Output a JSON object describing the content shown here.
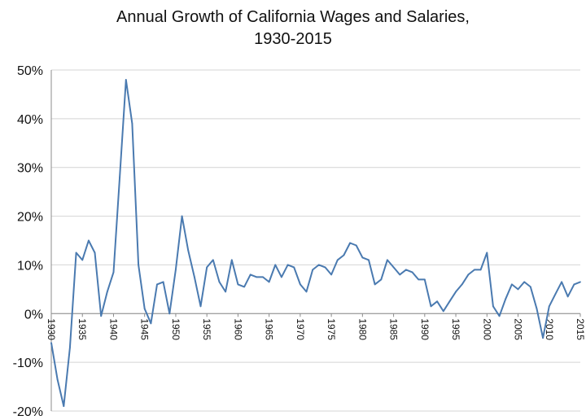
{
  "chart_data": {
    "type": "line",
    "title": [
      "Annual Growth of California Wages and Salaries,",
      "1930-2015"
    ],
    "xlabel": "",
    "ylabel": "",
    "xlim": [
      1930,
      2015
    ],
    "ylim": [
      -20,
      50
    ],
    "ytick_values": [
      -20,
      -10,
      0,
      10,
      20,
      30,
      40,
      50
    ],
    "yticks": [
      "-20%",
      "-10%",
      "0%",
      "10%",
      "20%",
      "30%",
      "40%",
      "50%"
    ],
    "xtick_values": [
      1930,
      1935,
      1940,
      1945,
      1950,
      1955,
      1960,
      1965,
      1970,
      1975,
      1980,
      1985,
      1990,
      1995,
      2000,
      2005,
      2010,
      2015
    ],
    "xticks": [
      "1930",
      "1935",
      "1940",
      "1945",
      "1950",
      "1955",
      "1960",
      "1965",
      "1970",
      "1975",
      "1980",
      "1985",
      "1990",
      "1995",
      "2000",
      "2005",
      "2010",
      "2015"
    ],
    "grid": "horizontal",
    "line_color": "#4a7ab0",
    "series": [
      {
        "x": [
          1930,
          1931,
          1932,
          1933,
          1934,
          1935,
          1936,
          1937,
          1938,
          1939,
          1940,
          1941,
          1942,
          1943,
          1944,
          1945,
          1946,
          1947,
          1948,
          1949,
          1950,
          1951,
          1952,
          1953,
          1954,
          1955,
          1956,
          1957,
          1958,
          1959,
          1960,
          1961,
          1962,
          1963,
          1964,
          1965,
          1966,
          1967,
          1968,
          1969,
          1970,
          1971,
          1972,
          1973,
          1974,
          1975,
          1976,
          1977,
          1978,
          1979,
          1980,
          1981,
          1982,
          1983,
          1984,
          1985,
          1986,
          1987,
          1988,
          1989,
          1990,
          1991,
          1992,
          1993,
          1994,
          1995,
          1996,
          1997,
          1998,
          1999,
          2000,
          2001,
          2002,
          2003,
          2004,
          2005,
          2006,
          2007,
          2008,
          2009,
          2010,
          2011,
          2012,
          2013,
          2014,
          2015
        ],
        "y": [
          -6,
          -13.5,
          -19,
          -7,
          12.5,
          11,
          15,
          12.5,
          -0.5,
          4.5,
          8.5,
          28,
          48,
          39,
          10,
          1,
          -2,
          6,
          6.5,
          0,
          9,
          20,
          13,
          7.5,
          1.5,
          9.5,
          11,
          6.5,
          4.5,
          11,
          6,
          5.5,
          8,
          7.5,
          7.5,
          6.5,
          10,
          7.5,
          10,
          9.5,
          6,
          4.5,
          9,
          10,
          9.5,
          8,
          11,
          12,
          14.5,
          14,
          11.5,
          11,
          6,
          7,
          11,
          9.5,
          8,
          9,
          8.5,
          7,
          7,
          1.5,
          2.5,
          0.5,
          2.5,
          4.5,
          6,
          8,
          9,
          9,
          12.5,
          1.5,
          -0.5,
          3,
          6,
          5,
          6.5,
          5.5,
          1,
          -5,
          1.5,
          4,
          6.5,
          3.5,
          6,
          6.5
        ]
      }
    ]
  }
}
